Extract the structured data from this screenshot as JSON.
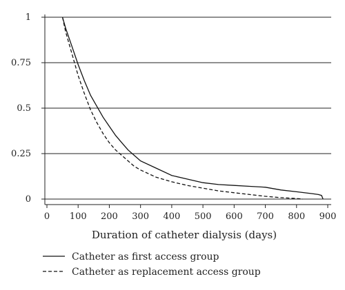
{
  "chart_data": {
    "type": "line",
    "title": "",
    "xlabel": "Duration of catheter dialysis (days)",
    "ylabel": "",
    "xlim": [
      0,
      900
    ],
    "ylim": [
      0,
      1
    ],
    "xticks": [
      "0",
      "100",
      "200",
      "300",
      "400",
      "500",
      "600",
      "700",
      "800",
      "900"
    ],
    "yticks": [
      "0",
      "0.25",
      "0.5",
      "0.75",
      "1"
    ],
    "grid": "horizontal",
    "legend_position": "bottom-left",
    "series": [
      {
        "name": "Catheter as first access group",
        "line_style": "solid",
        "color": "#111111",
        "x": [
          50,
          60,
          80,
          100,
          120,
          140,
          160,
          180,
          200,
          220,
          240,
          260,
          280,
          300,
          350,
          400,
          450,
          500,
          550,
          600,
          650,
          700,
          750,
          800,
          850,
          870,
          880,
          885
        ],
        "y": [
          1.0,
          0.94,
          0.84,
          0.74,
          0.65,
          0.57,
          0.51,
          0.45,
          0.4,
          0.35,
          0.31,
          0.27,
          0.24,
          0.21,
          0.17,
          0.13,
          0.11,
          0.09,
          0.08,
          0.075,
          0.07,
          0.065,
          0.05,
          0.04,
          0.03,
          0.025,
          0.02,
          0.0
        ]
      },
      {
        "name": "Catheter as replacement access group",
        "line_style": "dashed",
        "color": "#111111",
        "x": [
          50,
          60,
          80,
          100,
          120,
          140,
          160,
          180,
          200,
          220,
          240,
          260,
          280,
          300,
          350,
          400,
          450,
          500,
          550,
          600,
          650,
          700,
          750,
          800,
          820
        ],
        "y": [
          1.0,
          0.92,
          0.8,
          0.68,
          0.58,
          0.49,
          0.42,
          0.36,
          0.31,
          0.27,
          0.24,
          0.21,
          0.18,
          0.16,
          0.12,
          0.095,
          0.075,
          0.06,
          0.045,
          0.035,
          0.025,
          0.015,
          0.008,
          0.003,
          0.0
        ]
      }
    ]
  }
}
